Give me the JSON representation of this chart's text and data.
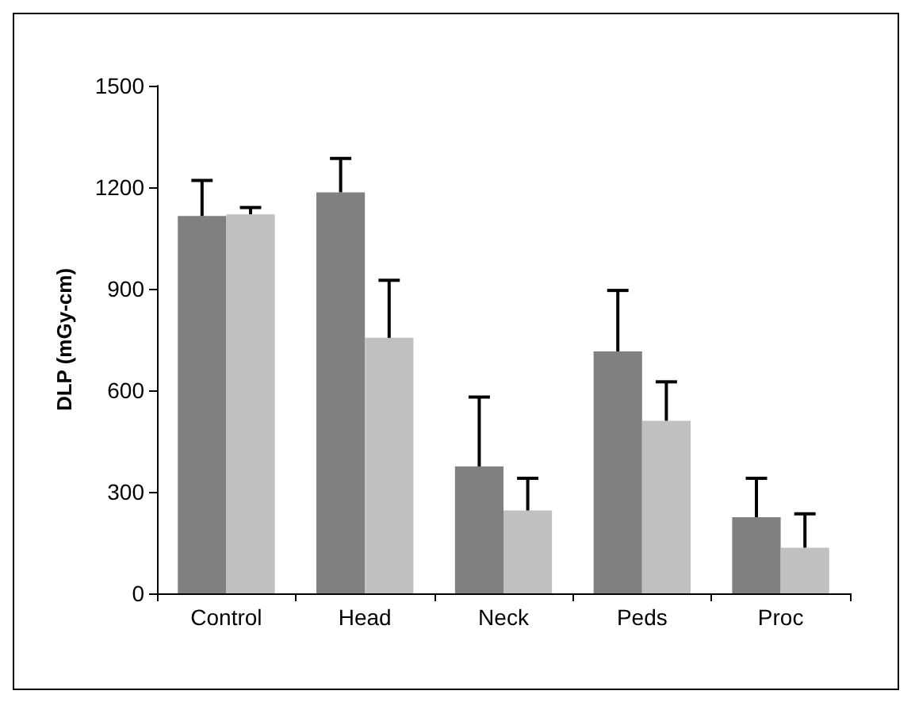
{
  "chart_data": {
    "type": "bar",
    "ylabel": "DLP (mGy-cm)",
    "categories": [
      "Control",
      "Head",
      "Neck",
      "Peds",
      "Proc"
    ],
    "series": [
      {
        "color": "#808080",
        "values": [
          1115,
          1185,
          375,
          715,
          225
        ],
        "errors": [
          [
            1115,
            1220
          ],
          [
            1185,
            1285
          ],
          [
            375,
            580
          ],
          [
            715,
            895
          ],
          [
            225,
            340
          ]
        ]
      },
      {
        "color": "#c0c0c0",
        "values": [
          1120,
          755,
          245,
          510,
          135
        ],
        "errors": [
          [
            1120,
            1140
          ],
          [
            755,
            925
          ],
          [
            245,
            340
          ],
          [
            510,
            625
          ],
          [
            135,
            235
          ]
        ]
      }
    ],
    "ylim": [
      0,
      1500
    ],
    "yticks": [
      0,
      300,
      600,
      900,
      1200,
      1500
    ],
    "grid": false,
    "legend": false
  }
}
